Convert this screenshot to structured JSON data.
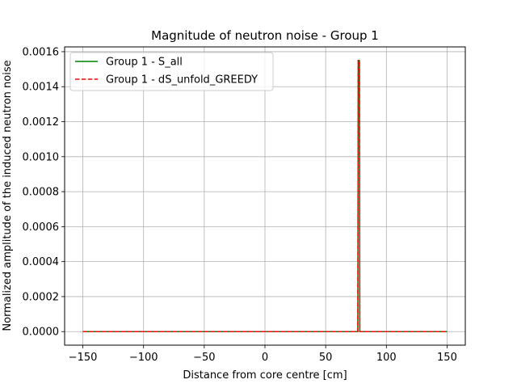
{
  "chart_data": {
    "type": "line",
    "title": "Magnitude of neutron noise - Group 1",
    "xlabel": "Distance from core centre [cm]",
    "ylabel": "Normalized amplitude of the induced neutron noise",
    "xlim": [
      -165,
      165
    ],
    "ylim": [
      -7.75e-05,
      0.0016275
    ],
    "xticks": [
      -150,
      -100,
      -50,
      0,
      50,
      100,
      150
    ],
    "xtick_labels": [
      "−150",
      "−100",
      "−50",
      "0",
      "50",
      "100",
      "150"
    ],
    "yticks": [
      0,
      0.0002,
      0.0004,
      0.0006,
      0.0008,
      0.001,
      0.0012,
      0.0014,
      0.0016
    ],
    "ytick_labels": [
      "0.0000",
      "0.0002",
      "0.0004",
      "0.0006",
      "0.0008",
      "0.0010",
      "0.0012",
      "0.0014",
      "0.0016"
    ],
    "grid": true,
    "legend_position": "top-left",
    "series": [
      {
        "name": "Group 1 - S_all",
        "color": "#008000",
        "style": "solid",
        "x": [
          -150,
          76.5,
          76.8,
          77.8,
          78.1,
          150
        ],
        "y": [
          0,
          0,
          0.00155,
          0.00155,
          0,
          0
        ]
      },
      {
        "name": "Group 1 - dS_unfold_GREEDY",
        "color": "#ff0000",
        "style": "dashed",
        "x": [
          -150,
          76.5,
          76.8,
          77.8,
          78.1,
          150
        ],
        "y": [
          0,
          0,
          0.00155,
          0.00155,
          0,
          0
        ]
      }
    ]
  }
}
